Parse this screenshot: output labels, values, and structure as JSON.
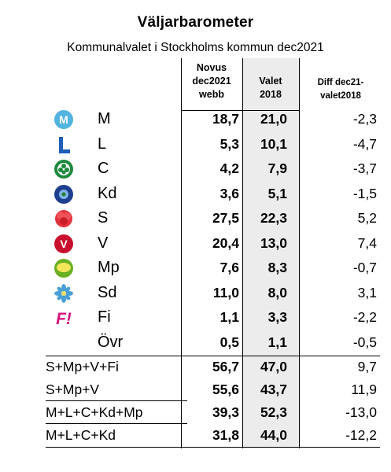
{
  "title": "Väljarbarometer",
  "subtitle": "Kommunalvalet i Stockholms kommun dec2021",
  "headers": {
    "novus": [
      "Novus",
      "dec2021",
      "webb"
    ],
    "valet": [
      "Valet",
      "2018"
    ],
    "diff": [
      "Diff dec21-",
      "valet2018"
    ]
  },
  "parties": [
    {
      "name": "M",
      "novus": "18,7",
      "valet": "21,0",
      "diff": "-2,3",
      "icon": "moderaterna-icon",
      "color": "#52b4e0"
    },
    {
      "name": "L",
      "novus": "5,3",
      "valet": "10,1",
      "diff": "-4,7",
      "icon": "liberalerna-icon",
      "color": "#1f5fb8"
    },
    {
      "name": "C",
      "novus": "4,2",
      "valet": "7,9",
      "diff": "-3,7",
      "icon": "centerpartiet-icon",
      "color": "#1e8a3e"
    },
    {
      "name": "Kd",
      "novus": "3,6",
      "valet": "5,1",
      "diff": "-1,5",
      "icon": "kristdemokraterna-icon",
      "color": "#1e3f8f"
    },
    {
      "name": "S",
      "novus": "27,5",
      "valet": "22,3",
      "diff": "5,2",
      "icon": "socialdemokraterna-icon",
      "color": "#e4323c"
    },
    {
      "name": "V",
      "novus": "20,4",
      "valet": "13,0",
      "diff": "7,4",
      "icon": "vansterpartiet-icon",
      "color": "#c8102e"
    },
    {
      "name": "Mp",
      "novus": "7,6",
      "valet": "8,3",
      "diff": "-0,7",
      "icon": "miljopartiet-icon",
      "color": "#6ab023"
    },
    {
      "name": "Sd",
      "novus": "11,0",
      "valet": "8,0",
      "diff": "3,1",
      "icon": "sverigedemokraterna-icon",
      "color": "#4a9fd6"
    },
    {
      "name": "Fi",
      "novus": "1,1",
      "valet": "3,3",
      "diff": "-2,2",
      "icon": "feministiskt-initiativ-icon",
      "color": "#d7137d"
    },
    {
      "name": "Övr",
      "novus": "0,5",
      "valet": "1,1",
      "diff": "-0,5",
      "icon": "",
      "color": ""
    }
  ],
  "combos": [
    {
      "name": "S+Mp+V+Fi",
      "novus": "56,7",
      "valet": "47,0",
      "diff": "9,7"
    },
    {
      "name": "S+Mp+V",
      "novus": "55,6",
      "valet": "43,7",
      "diff": "11,9"
    },
    {
      "name": "M+L+C+Kd+Mp",
      "novus": "39,3",
      "valet": "52,3",
      "diff": "-13,0"
    },
    {
      "name": "M+L+C+Kd",
      "novus": "31,8",
      "valet": "44,0",
      "diff": "-12,2"
    }
  ]
}
